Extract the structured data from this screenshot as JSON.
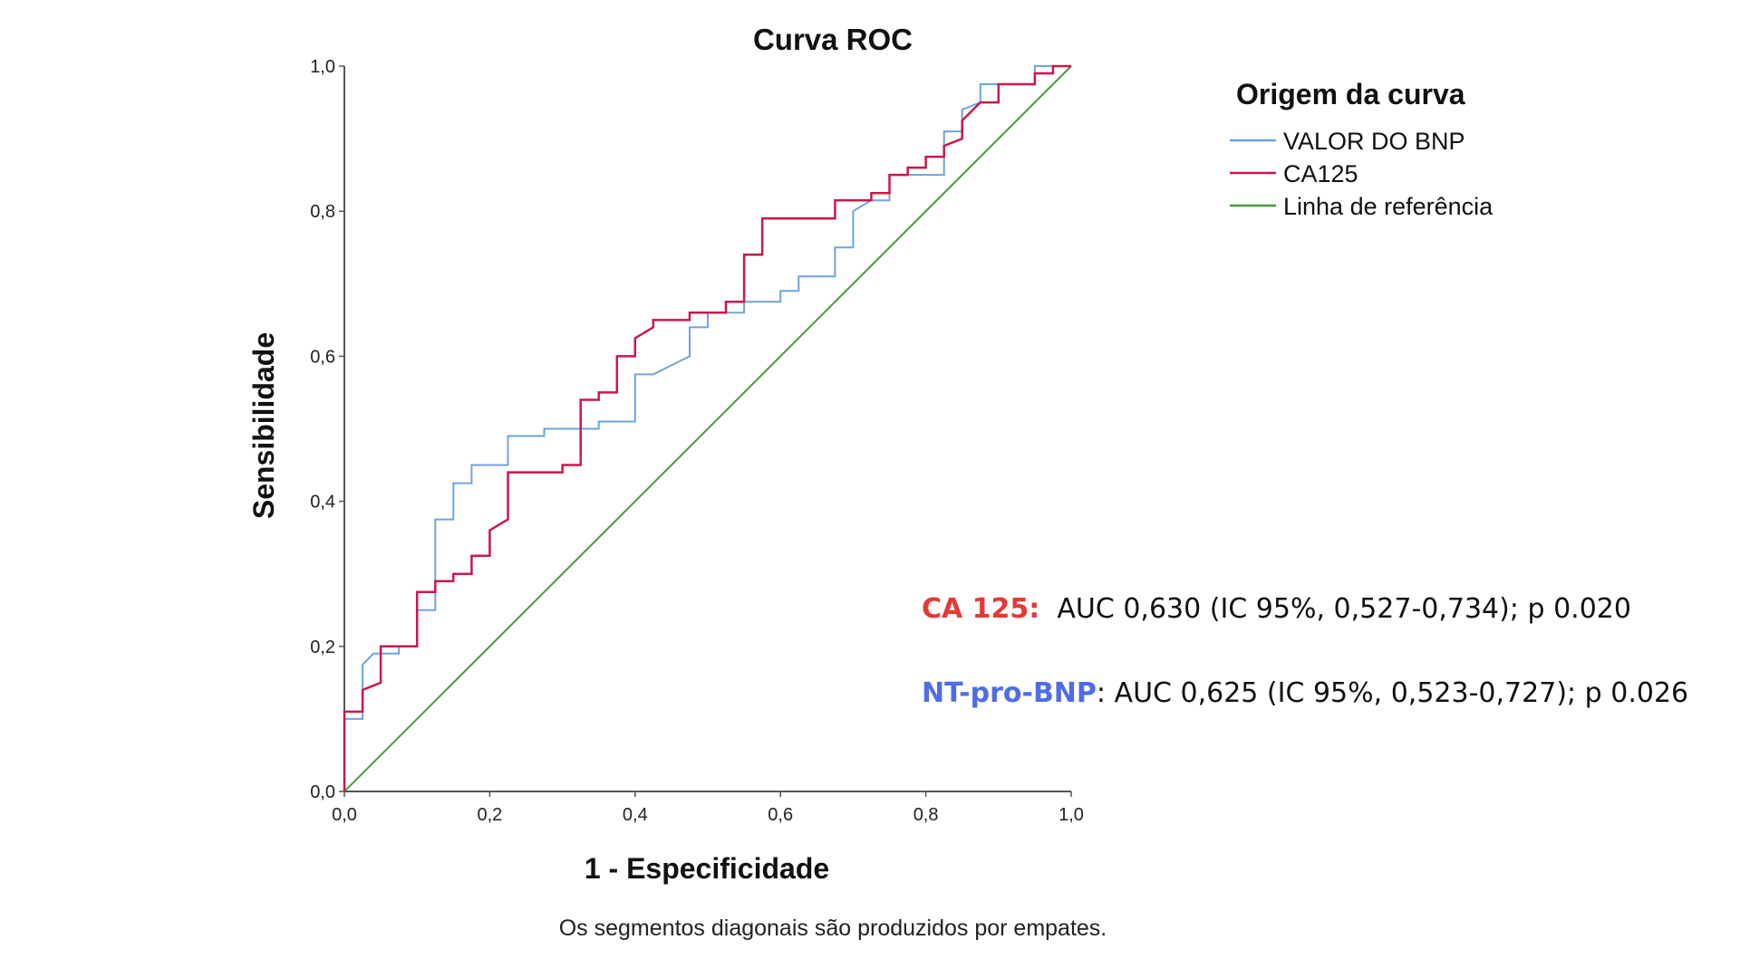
{
  "chart_data": {
    "type": "line",
    "title": "Curva ROC",
    "xlabel": "1 - Especificidade",
    "ylabel": "Sensibilidade",
    "xlim": [
      0,
      1
    ],
    "ylim": [
      0,
      1
    ],
    "x_ticks": [
      "0,0",
      "0,2",
      "0,4",
      "0,6",
      "0,8",
      "1,0"
    ],
    "y_ticks": [
      "0,0",
      "0,2",
      "0,4",
      "0,6",
      "0,8",
      "1,0"
    ],
    "grid": false,
    "legend_title": "Origem da curva",
    "legend_position": "top-right",
    "footnote": "Os segmentos diagonais são produzidos por empates.",
    "series": [
      {
        "name": "VALOR DO BNP",
        "color": "#6fa3df",
        "points": [
          [
            0,
            0
          ],
          [
            0,
            0.1
          ],
          [
            0.025,
            0.1
          ],
          [
            0.025,
            0.175
          ],
          [
            0.04,
            0.19
          ],
          [
            0.075,
            0.19
          ],
          [
            0.075,
            0.2
          ],
          [
            0.1,
            0.2
          ],
          [
            0.1,
            0.25
          ],
          [
            0.125,
            0.25
          ],
          [
            0.125,
            0.375
          ],
          [
            0.15,
            0.375
          ],
          [
            0.15,
            0.425
          ],
          [
            0.175,
            0.425
          ],
          [
            0.175,
            0.45
          ],
          [
            0.225,
            0.45
          ],
          [
            0.225,
            0.49
          ],
          [
            0.275,
            0.49
          ],
          [
            0.275,
            0.5
          ],
          [
            0.35,
            0.5
          ],
          [
            0.35,
            0.51
          ],
          [
            0.4,
            0.51
          ],
          [
            0.4,
            0.575
          ],
          [
            0.425,
            0.575
          ],
          [
            0.475,
            0.6
          ],
          [
            0.475,
            0.64
          ],
          [
            0.5,
            0.64
          ],
          [
            0.5,
            0.66
          ],
          [
            0.55,
            0.66
          ],
          [
            0.55,
            0.675
          ],
          [
            0.6,
            0.675
          ],
          [
            0.6,
            0.69
          ],
          [
            0.625,
            0.69
          ],
          [
            0.625,
            0.71
          ],
          [
            0.675,
            0.71
          ],
          [
            0.675,
            0.75
          ],
          [
            0.7,
            0.75
          ],
          [
            0.7,
            0.8
          ],
          [
            0.725,
            0.815
          ],
          [
            0.75,
            0.815
          ],
          [
            0.75,
            0.85
          ],
          [
            0.825,
            0.85
          ],
          [
            0.825,
            0.91
          ],
          [
            0.85,
            0.91
          ],
          [
            0.85,
            0.94
          ],
          [
            0.875,
            0.95
          ],
          [
            0.875,
            0.975
          ],
          [
            0.95,
            0.975
          ],
          [
            0.95,
            1.0
          ],
          [
            1.0,
            1.0
          ]
        ]
      },
      {
        "name": "CA125",
        "color": "#c8194b",
        "points": [
          [
            0,
            0
          ],
          [
            0,
            0.11
          ],
          [
            0.025,
            0.11
          ],
          [
            0.025,
            0.14
          ],
          [
            0.05,
            0.15
          ],
          [
            0.05,
            0.2
          ],
          [
            0.1,
            0.2
          ],
          [
            0.1,
            0.275
          ],
          [
            0.125,
            0.275
          ],
          [
            0.125,
            0.29
          ],
          [
            0.15,
            0.29
          ],
          [
            0.15,
            0.3
          ],
          [
            0.175,
            0.3
          ],
          [
            0.175,
            0.325
          ],
          [
            0.2,
            0.325
          ],
          [
            0.2,
            0.36
          ],
          [
            0.225,
            0.375
          ],
          [
            0.225,
            0.44
          ],
          [
            0.3,
            0.44
          ],
          [
            0.3,
            0.45
          ],
          [
            0.325,
            0.45
          ],
          [
            0.325,
            0.54
          ],
          [
            0.35,
            0.54
          ],
          [
            0.35,
            0.55
          ],
          [
            0.375,
            0.55
          ],
          [
            0.375,
            0.6
          ],
          [
            0.4,
            0.6
          ],
          [
            0.4,
            0.625
          ],
          [
            0.425,
            0.64
          ],
          [
            0.425,
            0.65
          ],
          [
            0.475,
            0.65
          ],
          [
            0.475,
            0.66
          ],
          [
            0.525,
            0.66
          ],
          [
            0.525,
            0.675
          ],
          [
            0.55,
            0.675
          ],
          [
            0.55,
            0.74
          ],
          [
            0.575,
            0.74
          ],
          [
            0.575,
            0.79
          ],
          [
            0.675,
            0.79
          ],
          [
            0.675,
            0.815
          ],
          [
            0.725,
            0.815
          ],
          [
            0.725,
            0.825
          ],
          [
            0.75,
            0.825
          ],
          [
            0.75,
            0.85
          ],
          [
            0.775,
            0.85
          ],
          [
            0.775,
            0.86
          ],
          [
            0.8,
            0.86
          ],
          [
            0.8,
            0.875
          ],
          [
            0.825,
            0.875
          ],
          [
            0.825,
            0.89
          ],
          [
            0.85,
            0.9
          ],
          [
            0.85,
            0.925
          ],
          [
            0.875,
            0.95
          ],
          [
            0.9,
            0.95
          ],
          [
            0.9,
            0.975
          ],
          [
            0.95,
            0.975
          ],
          [
            0.95,
            0.99
          ],
          [
            0.975,
            0.99
          ],
          [
            0.975,
            1.0
          ],
          [
            1.0,
            1.0
          ]
        ]
      },
      {
        "name": "Linha de referência",
        "color": "#4a9a3e",
        "points": [
          [
            0,
            0
          ],
          [
            1,
            1
          ]
        ]
      }
    ]
  },
  "annotations": {
    "ca125": {
      "label": "CA 125:",
      "label_color": "#e53935",
      "text": "  AUC 0,630 (IC 95%, 0,527-0,734); p 0.020"
    },
    "bnp": {
      "label": "NT-pro-BNP",
      "label_color": "#4f6ce8",
      "text": ": AUC 0,625 (IC 95%, 0,523-0,727); p 0.026"
    }
  }
}
